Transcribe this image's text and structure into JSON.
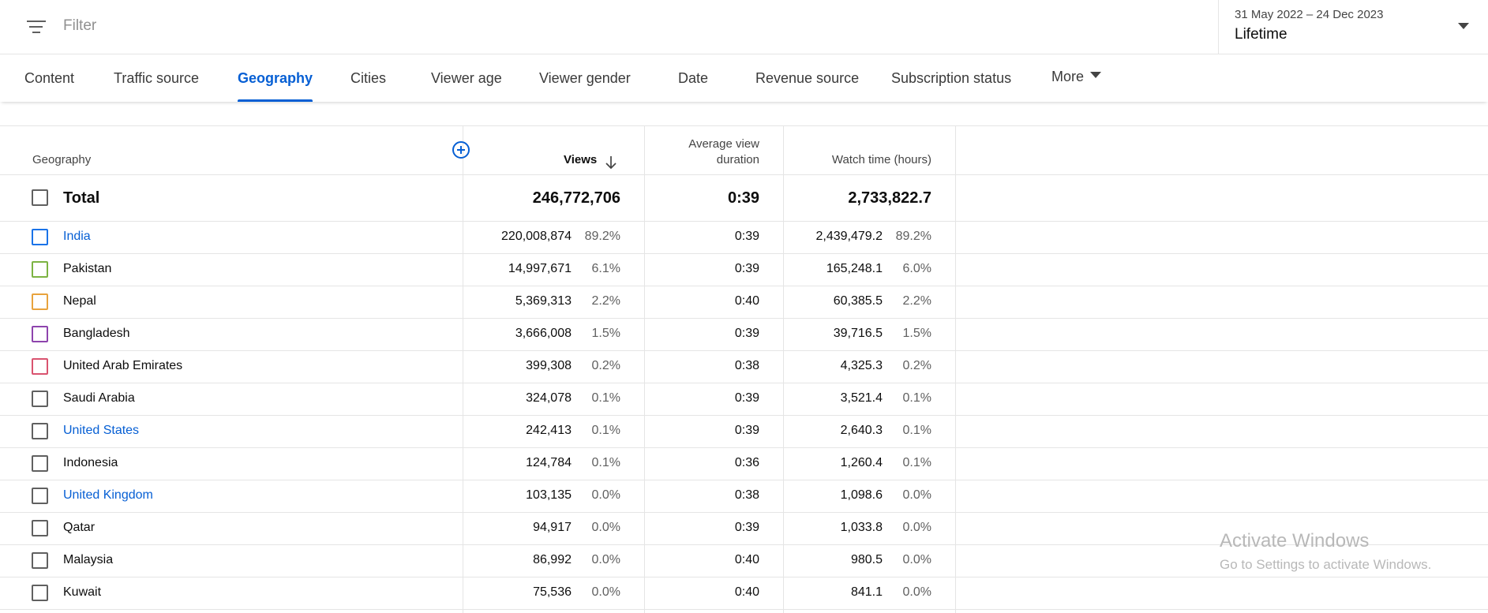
{
  "filter": {
    "placeholder": "Filter",
    "icon": "filter-icon"
  },
  "date": {
    "range": "31 May 2022 – 24 Dec 2023",
    "label": "Lifetime"
  },
  "tabs": [
    {
      "label": "Content"
    },
    {
      "label": "Traffic source"
    },
    {
      "label": "Geography",
      "active": true
    },
    {
      "label": "Cities"
    },
    {
      "label": "Viewer age"
    },
    {
      "label": "Viewer gender"
    },
    {
      "label": "Date"
    },
    {
      "label": "Revenue source"
    },
    {
      "label": "Subscription status"
    },
    {
      "label": "More"
    }
  ],
  "table": {
    "headers": {
      "geography": "Geography",
      "views": "Views",
      "avd_line1": "Average view",
      "avd_line2": "duration",
      "watch": "Watch time (hours)"
    },
    "total": {
      "label": "Total",
      "views": "246,772,706",
      "avd": "0:39",
      "watch": "2,733,822.7"
    },
    "rows": [
      {
        "name": "India",
        "link": true,
        "checkbox_color": "#1a73e8",
        "views": "220,008,874",
        "views_pct": "89.2%",
        "avd": "0:39",
        "watch": "2,439,479.2",
        "watch_pct": "89.2%"
      },
      {
        "name": "Pakistan",
        "link": false,
        "checkbox_color": "#7cb342",
        "views": "14,997,671",
        "views_pct": "6.1%",
        "avd": "0:39",
        "watch": "165,248.1",
        "watch_pct": "6.0%"
      },
      {
        "name": "Nepal",
        "link": false,
        "checkbox_color": "#e8a33d",
        "views": "5,369,313",
        "views_pct": "2.2%",
        "avd": "0:40",
        "watch": "60,385.5",
        "watch_pct": "2.2%"
      },
      {
        "name": "Bangladesh",
        "link": false,
        "checkbox_color": "#8e44ad",
        "views": "3,666,008",
        "views_pct": "1.5%",
        "avd": "0:39",
        "watch": "39,716.5",
        "watch_pct": "1.5%"
      },
      {
        "name": "United Arab Emirates",
        "link": false,
        "checkbox_color": "#d9536f",
        "views": "399,308",
        "views_pct": "0.2%",
        "avd": "0:38",
        "watch": "4,325.3",
        "watch_pct": "0.2%"
      },
      {
        "name": "Saudi Arabia",
        "link": false,
        "checkbox_color": "#606060",
        "views": "324,078",
        "views_pct": "0.1%",
        "avd": "0:39",
        "watch": "3,521.4",
        "watch_pct": "0.1%"
      },
      {
        "name": "United States",
        "link": true,
        "checkbox_color": "#606060",
        "views": "242,413",
        "views_pct": "0.1%",
        "avd": "0:39",
        "watch": "2,640.3",
        "watch_pct": "0.1%"
      },
      {
        "name": "Indonesia",
        "link": false,
        "checkbox_color": "#606060",
        "views": "124,784",
        "views_pct": "0.1%",
        "avd": "0:36",
        "watch": "1,260.4",
        "watch_pct": "0.1%"
      },
      {
        "name": "United Kingdom",
        "link": true,
        "checkbox_color": "#606060",
        "views": "103,135",
        "views_pct": "0.0%",
        "avd": "0:38",
        "watch": "1,098.6",
        "watch_pct": "0.0%"
      },
      {
        "name": "Qatar",
        "link": false,
        "checkbox_color": "#606060",
        "views": "94,917",
        "views_pct": "0.0%",
        "avd": "0:39",
        "watch": "1,033.8",
        "watch_pct": "0.0%"
      },
      {
        "name": "Malaysia",
        "link": false,
        "checkbox_color": "#606060",
        "views": "86,992",
        "views_pct": "0.0%",
        "avd": "0:40",
        "watch": "980.5",
        "watch_pct": "0.0%"
      },
      {
        "name": "Kuwait",
        "link": false,
        "checkbox_color": "#606060",
        "views": "75,536",
        "views_pct": "0.0%",
        "avd": "0:40",
        "watch": "841.1",
        "watch_pct": "0.0%"
      }
    ]
  },
  "watermark": {
    "line1": "Activate Windows",
    "line2": "Go to Settings to activate Windows."
  },
  "colors": {
    "accent": "#065fd4"
  }
}
